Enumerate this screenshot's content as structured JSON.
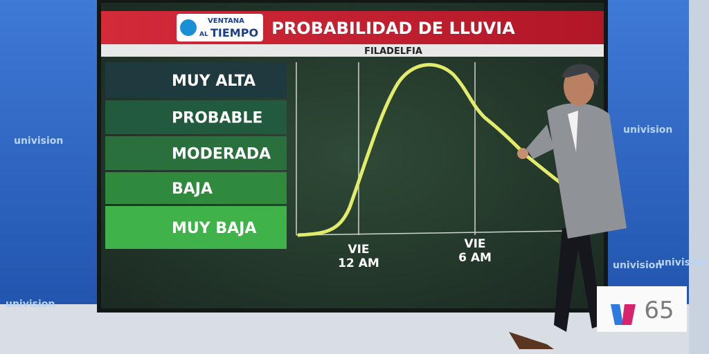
{
  "logo": {
    "line1": "VENTANA",
    "line2": "AL",
    "line3": "TIEMPO"
  },
  "title": "PROBABILIDAD DE LLUVIA",
  "subtitle": "FILADELFIA",
  "levels": [
    "MUY ALTA",
    "PROBABLE",
    "MODERADA",
    "BAJA",
    "MUY BAJA"
  ],
  "x_labels": [
    {
      "day": "VIE",
      "time": "12 AM"
    },
    {
      "day": "VIE",
      "time": "6 AM"
    }
  ],
  "wall_text": [
    "univision",
    "univision",
    "univision",
    "univision",
    "univision"
  ],
  "channel": "65"
}
